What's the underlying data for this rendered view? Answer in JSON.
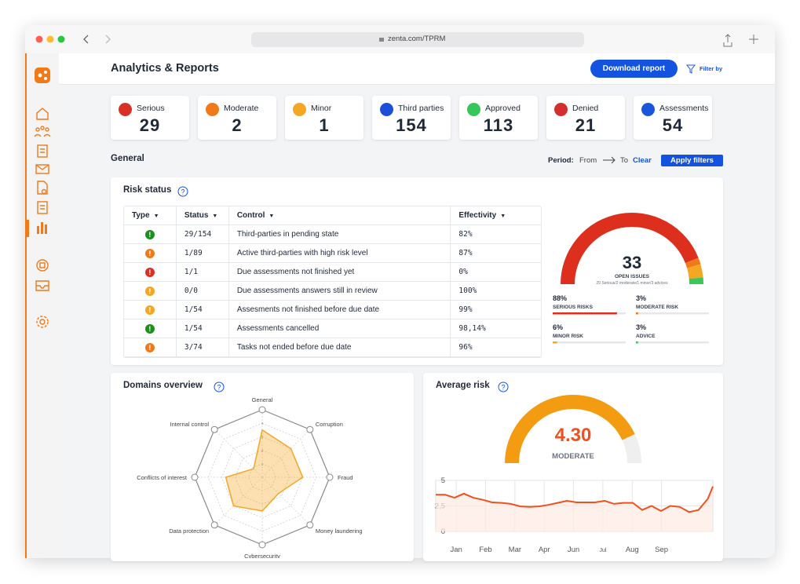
{
  "browser": {
    "url": "zenta.com/TPRM"
  },
  "header": {
    "title": "Analytics & Reports",
    "download": "Download report",
    "filter": "Filter by"
  },
  "stats": [
    {
      "label": "Serious",
      "value": 29,
      "color": "#d93025"
    },
    {
      "label": "Moderate",
      "value": 2,
      "color": "#f07a1a"
    },
    {
      "label": "Minor",
      "value": 1,
      "color": "#f5a623"
    },
    {
      "label": "Third parties",
      "value": 154,
      "color": "#1d4ed8"
    },
    {
      "label": "Approved",
      "value": 113,
      "color": "#34c759"
    },
    {
      "label": "Denied",
      "value": 21,
      "color": "#d32f2f"
    },
    {
      "label": "Assessments",
      "value": 54,
      "color": "#1a56db"
    }
  ],
  "general": {
    "title": "General",
    "period": "Period:",
    "from": "From",
    "to": "To",
    "clear": "Clear",
    "apply": "Apply filters"
  },
  "risk_status": {
    "title": "Risk status",
    "columns": [
      "Type",
      "Status",
      "Control",
      "Effectivity"
    ],
    "rows": [
      {
        "color": "#1e8e1e",
        "status": "29/154",
        "control": "Third-parties in pending state",
        "effectivity": "82%"
      },
      {
        "color": "#f07a1a",
        "status": "1/89",
        "control": "Active third-parties with high risk level",
        "effectivity": "87%"
      },
      {
        "color": "#d93025",
        "status": "1/1",
        "control": "Due assessments not finished yet",
        "effectivity": "0%"
      },
      {
        "color": "#f5a623",
        "status": "0/0",
        "control": "Due assessments answers still in review",
        "effectivity": "100%"
      },
      {
        "color": "#f5a623",
        "status": "1/54",
        "control": "Assesments not finished before due date",
        "effectivity": "99%"
      },
      {
        "color": "#1e8e1e",
        "status": "1/54",
        "control": "Assessments cancelled",
        "effectivity": "98,14%"
      },
      {
        "color": "#f07a1a",
        "status": "3/74",
        "control": "Tasks not ended before due date",
        "effectivity": "96%"
      }
    ],
    "gauge": {
      "value": 33,
      "label": "OPEN ISSUES",
      "sub": "29 Serious/2 moderate/1 minor/3 advices",
      "metrics": [
        {
          "name": "SERIOUS RISKS",
          "value": 88,
          "value_label": "88%",
          "color": "#dc2f1e"
        },
        {
          "name": "MODERATE RISK",
          "value": 3,
          "value_label": "3%",
          "color": "#f07a1a"
        },
        {
          "name": "MINOR RISK",
          "value": 6,
          "value_label": "6%",
          "color": "#f5a623"
        },
        {
          "name": "ADVICE",
          "value": 3,
          "value_label": "3%",
          "color": "#3cc75a"
        }
      ]
    }
  },
  "domains": {
    "title": "Domains overview",
    "chart": {
      "type": "radar",
      "categories": [
        "General",
        "Corruption",
        "Fraud",
        "Money laundering",
        "Cybersecurity",
        "Data protection",
        "Conflicts of interest",
        "Internal control"
      ],
      "values": [
        3.5,
        3,
        3,
        1.7,
        2.5,
        3,
        2.7,
        0.9
      ],
      "color": "#f5a623",
      "rlim": [
        0,
        5
      ],
      "rticks": [
        1,
        2,
        3,
        4,
        5
      ]
    }
  },
  "average_risk": {
    "title": "Average risk",
    "gauge": {
      "value": 4.3,
      "value_label": "4.30",
      "level": "MODERATE",
      "lim": [
        0,
        5
      ],
      "color": "#f39c12"
    },
    "chart": {
      "type": "line",
      "color": "#f0501e",
      "x": [
        -0.7,
        -0.38,
        -0.06,
        0.26,
        0.58,
        0.9,
        1.22,
        1.54,
        1.86,
        2.18,
        2.5,
        2.82,
        3.14,
        3.46,
        3.78,
        4.1,
        4.42,
        4.74,
        5.06,
        5.38,
        5.7,
        6.02,
        6.34,
        6.66,
        6.98,
        7.3,
        7.62,
        7.94,
        8.26,
        8.58,
        8.75
      ],
      "values": [
        3.6,
        3.6,
        3.3,
        3.7,
        3.3,
        3.1,
        2.85,
        2.8,
        2.7,
        2.45,
        2.4,
        2.45,
        2.6,
        2.8,
        3.0,
        2.85,
        2.85,
        2.85,
        3.0,
        2.7,
        2.8,
        2.8,
        2.1,
        2.5,
        2.0,
        2.5,
        2.4,
        1.9,
        2.1,
        3.2,
        4.4
      ],
      "xlim": [
        -0.7,
        8.75
      ],
      "xticks": [
        {
          "value": 0,
          "label": "Jan"
        },
        {
          "value": 1,
          "label": "Feb"
        },
        {
          "value": 2,
          "label": "Mar"
        },
        {
          "value": 3,
          "label": "Apr"
        },
        {
          "value": 4,
          "label": "Jun"
        },
        {
          "value": 5,
          "label": "Jul"
        },
        {
          "value": 6,
          "label": "Aug"
        },
        {
          "value": 7,
          "label": "Sep"
        }
      ],
      "ylim": [
        0,
        5
      ],
      "yticks": [
        0,
        {
          "value": 2.5,
          "label": "2,5"
        },
        5
      ]
    }
  }
}
